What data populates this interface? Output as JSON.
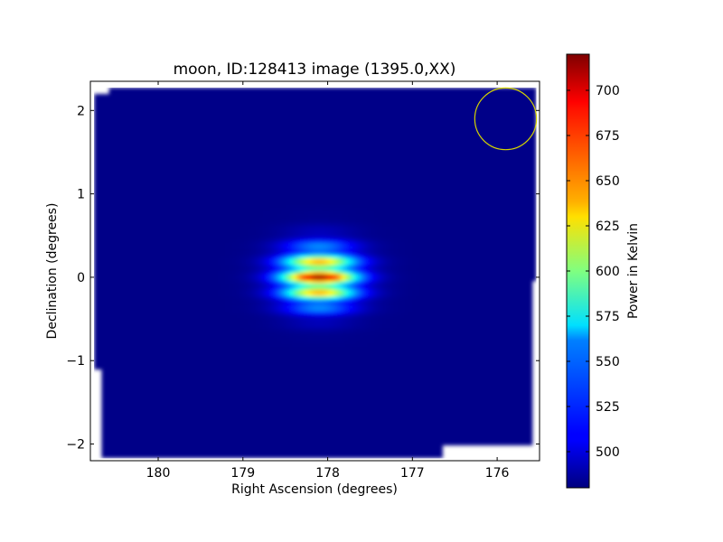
{
  "chart_data": {
    "type": "heatmap",
    "title": "moon, ID:128413 image (1395.0,XX)",
    "xlabel": "Right Ascension (degrees)",
    "ylabel": "Declination (degrees)",
    "xlim": [
      180.8,
      175.5
    ],
    "ylim": [
      -2.2,
      2.35
    ],
    "x_ticks": [
      180,
      179,
      178,
      177,
      176
    ],
    "x_tick_labels": [
      "180",
      "179",
      "178",
      "177",
      "176"
    ],
    "y_ticks": [
      2,
      1,
      0,
      -1,
      -2
    ],
    "y_tick_labels": [
      "2",
      "1",
      "0",
      "−1",
      "−2"
    ],
    "colorbar": {
      "label": "Power in Kelvin",
      "range": [
        480,
        720
      ],
      "ticks": [
        700,
        675,
        650,
        625,
        600,
        575,
        550,
        525,
        500
      ],
      "tick_labels": [
        "700",
        "675",
        "650",
        "625",
        "600",
        "575",
        "550",
        "525",
        "500"
      ],
      "colormap": "jet"
    },
    "background_level": 482,
    "source": {
      "ra": 178.1,
      "dec": 0.0,
      "peak": 718,
      "width_ra_deg": 0.75,
      "width_dec_deg": 0.45,
      "ripple_period_dec_deg": 0.2
    },
    "beam_circle": {
      "ra": 175.9,
      "dec": 1.9,
      "radius_deg": 0.37,
      "color": "#d4d400"
    },
    "grid": false,
    "legend": "none"
  }
}
